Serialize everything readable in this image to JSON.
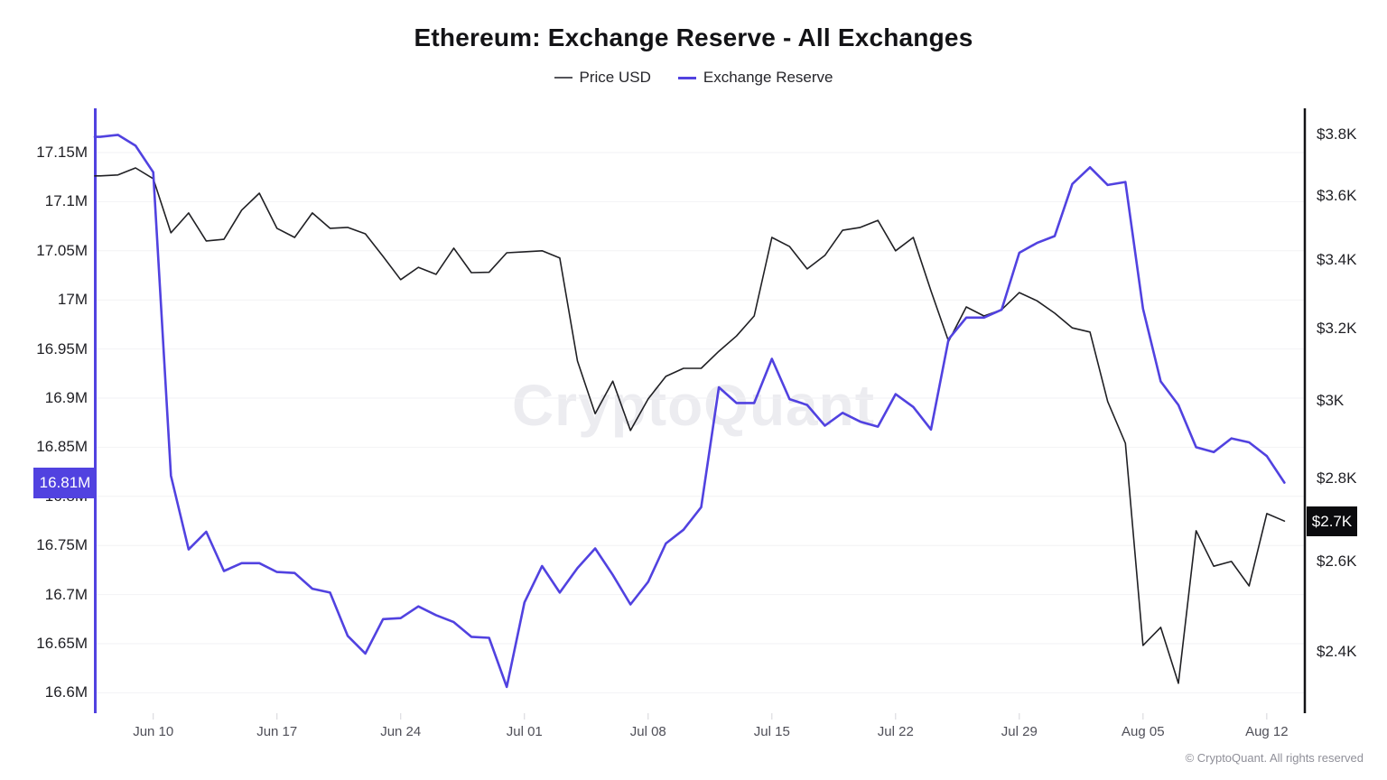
{
  "title": "Ethereum: Exchange Reserve - All Exchanges",
  "legend": {
    "price_label": "Price USD",
    "reserve_label": "Exchange Reserve"
  },
  "watermark": "CryptoQuant",
  "copyright": "© CryptoQuant. All rights reserved",
  "colors": {
    "reserve_accent": "#5142e0",
    "price_line": "#202024",
    "left_badge_bg": "#5142e0",
    "right_badge_bg": "#0b0b0e"
  },
  "left_axis": {
    "badge": "16.81M",
    "ticks": [
      {
        "label": "17.15M",
        "value": 17.15
      },
      {
        "label": "17.1M",
        "value": 17.1
      },
      {
        "label": "17.05M",
        "value": 17.05
      },
      {
        "label": "17M",
        "value": 17.0
      },
      {
        "label": "16.95M",
        "value": 16.95
      },
      {
        "label": "16.9M",
        "value": 16.9
      },
      {
        "label": "16.85M",
        "value": 16.85
      },
      {
        "label": "16.8M",
        "value": 16.8
      },
      {
        "label": "16.75M",
        "value": 16.75
      },
      {
        "label": "16.7M",
        "value": 16.7
      },
      {
        "label": "16.65M",
        "value": 16.65
      },
      {
        "label": "16.6M",
        "value": 16.6
      }
    ]
  },
  "right_axis": {
    "badge": "$2.7K",
    "ticks": [
      {
        "label": "$3.8K",
        "value": 3800
      },
      {
        "label": "$3.6K",
        "value": 3600
      },
      {
        "label": "$3.4K",
        "value": 3400
      },
      {
        "label": "$3.2K",
        "value": 3200
      },
      {
        "label": "$3K",
        "value": 3000
      },
      {
        "label": "$2.8K",
        "value": 2800
      },
      {
        "label": "$2.6K",
        "value": 2600
      },
      {
        "label": "$2.4K",
        "value": 2400
      }
    ]
  },
  "x_axis": {
    "ticks": [
      {
        "label": "Jun 10",
        "day_index": 3
      },
      {
        "label": "Jun 17",
        "day_index": 10
      },
      {
        "label": "Jun 24",
        "day_index": 17
      },
      {
        "label": "Jul 01",
        "day_index": 24
      },
      {
        "label": "Jul 08",
        "day_index": 31
      },
      {
        "label": "Jul 15",
        "day_index": 38
      },
      {
        "label": "Jul 22",
        "day_index": 45
      },
      {
        "label": "Jul 29",
        "day_index": 52
      },
      {
        "label": "Aug 05",
        "day_index": 59
      },
      {
        "label": "Aug 12",
        "day_index": 66
      }
    ]
  },
  "chart_data": {
    "type": "line",
    "title": "Ethereum: Exchange Reserve - All Exchanges",
    "left_axis_scale": "linear",
    "right_axis_scale": "log",
    "left_ylim": [
      16.58,
      17.19
    ],
    "right_ylim": [
      2260,
      3900
    ],
    "grid": "horizontal, aligned to left-axis ticks",
    "legend_position": "top-center",
    "dates": [
      "Jun 07",
      "Jun 08",
      "Jun 09",
      "Jun 10",
      "Jun 11",
      "Jun 12",
      "Jun 13",
      "Jun 14",
      "Jun 15",
      "Jun 16",
      "Jun 17",
      "Jun 18",
      "Jun 19",
      "Jun 20",
      "Jun 21",
      "Jun 22",
      "Jun 23",
      "Jun 24",
      "Jun 25",
      "Jun 26",
      "Jun 27",
      "Jun 28",
      "Jun 29",
      "Jun 30",
      "Jul 01",
      "Jul 02",
      "Jul 03",
      "Jul 04",
      "Jul 05",
      "Jul 06",
      "Jul 07",
      "Jul 08",
      "Jul 09",
      "Jul 10",
      "Jul 11",
      "Jul 12",
      "Jul 13",
      "Jul 14",
      "Jul 15",
      "Jul 16",
      "Jul 17",
      "Jul 18",
      "Jul 19",
      "Jul 20",
      "Jul 21",
      "Jul 22",
      "Jul 23",
      "Jul 24",
      "Jul 25",
      "Jul 26",
      "Jul 27",
      "Jul 28",
      "Jul 29",
      "Jul 30",
      "Jul 31",
      "Aug 01",
      "Aug 02",
      "Aug 03",
      "Aug 04",
      "Aug 05",
      "Aug 06",
      "Aug 07",
      "Aug 08",
      "Aug 09",
      "Aug 10",
      "Aug 11",
      "Aug 12",
      "Aug 13"
    ],
    "series": [
      {
        "name": "Price USD",
        "axis": "right",
        "unit": "USD",
        "latest_label": "$2.7K",
        "values": [
          3664,
          3667,
          3690,
          3655,
          3483,
          3545,
          3458,
          3463,
          3554,
          3608,
          3497,
          3469,
          3545,
          3497,
          3500,
          3480,
          3411,
          3341,
          3378,
          3357,
          3436,
          3362,
          3363,
          3422,
          3425,
          3428,
          3406,
          3108,
          2966,
          3053,
          2922,
          3005,
          3066,
          3088,
          3088,
          3135,
          3178,
          3235,
          3469,
          3441,
          3373,
          3414,
          3491,
          3500,
          3522,
          3428,
          3469,
          3308,
          3163,
          3261,
          3235,
          3253,
          3303,
          3279,
          3243,
          3201,
          3189,
          2998,
          2889,
          2414,
          2453,
          2334,
          2673,
          2590,
          2601,
          2545,
          2714,
          2696
        ]
      },
      {
        "name": "Exchange Reserve",
        "axis": "left",
        "unit": "ETH (millions)",
        "latest_label": "16.81M",
        "values": [
          17.166,
          17.168,
          17.157,
          17.13,
          16.821,
          16.746,
          16.764,
          16.724,
          16.732,
          16.732,
          16.723,
          16.722,
          16.706,
          16.702,
          16.658,
          16.64,
          16.675,
          16.676,
          16.688,
          16.679,
          16.672,
          16.657,
          16.656,
          16.606,
          16.692,
          16.729,
          16.702,
          16.727,
          16.747,
          16.72,
          16.69,
          16.713,
          16.752,
          16.766,
          16.789,
          16.911,
          16.895,
          16.895,
          16.94,
          16.899,
          16.893,
          16.872,
          16.885,
          16.876,
          16.871,
          16.904,
          16.891,
          16.868,
          16.96,
          16.982,
          16.982,
          16.99,
          17.048,
          17.058,
          17.065,
          17.118,
          17.135,
          17.117,
          17.12,
          16.991,
          16.917,
          16.893,
          16.85,
          16.845,
          16.859,
          16.855,
          16.841,
          16.814
        ]
      }
    ]
  }
}
